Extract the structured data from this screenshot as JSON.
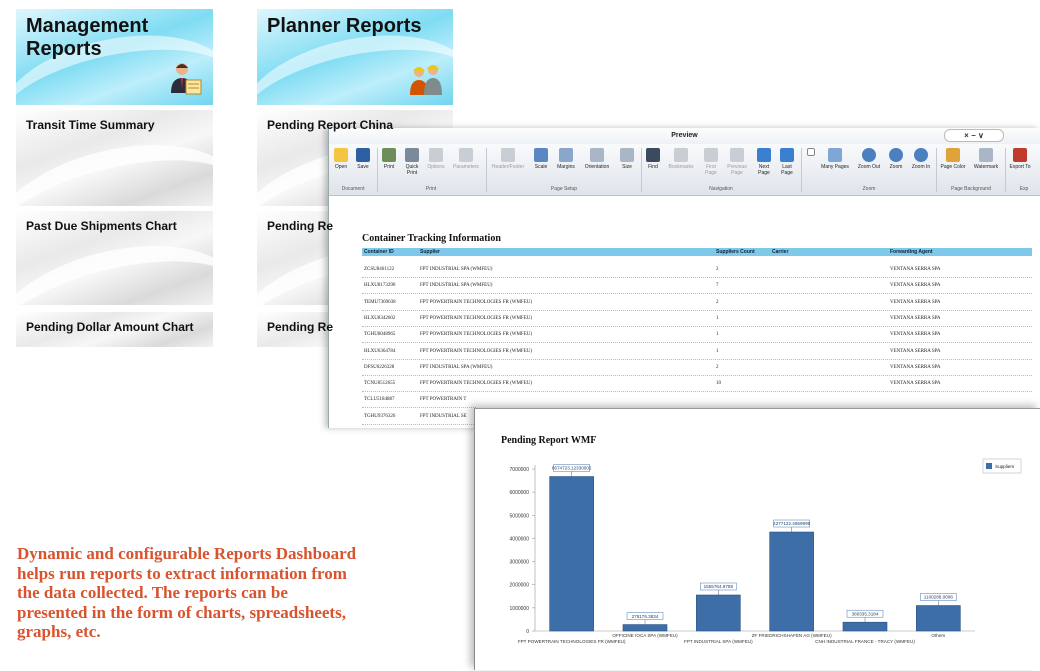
{
  "dashboard": {
    "management_title_line1": "Management",
    "management_title_line2": "Reports",
    "planner_title": "Planner Reports",
    "left_tiles": [
      "Transit Time Summary",
      "Past Due Shipments Chart",
      "Pending Dollar Amount Chart"
    ],
    "right_tiles": [
      "Pending Report China",
      "Pending Re",
      "Pending Re"
    ]
  },
  "preview": {
    "window_title": "Preview",
    "window_controls": "× − ∨",
    "ribbon": {
      "document": {
        "label": "Document",
        "buttons": [
          "Open",
          "Save"
        ]
      },
      "print": {
        "label": "Print",
        "buttons": [
          "Print",
          "Quick Print",
          "Options",
          "Parameters"
        ]
      },
      "page_setup": {
        "label": "Page Setup",
        "buttons": [
          "Header/Footer",
          "Scale",
          "Margins",
          "Orientation",
          "Size"
        ]
      },
      "navigation": {
        "label": "Navigation",
        "buttons": [
          "Find",
          "Bookmarks",
          "First Page",
          "Previous Page",
          "Next Page",
          "Last Page"
        ]
      },
      "zoom": {
        "label": "Zoom",
        "buttons": [
          "Many Pages",
          "Zoom Out",
          "Zoom",
          "Zoom In"
        ]
      },
      "page_background": {
        "label": "Page Background",
        "buttons": [
          "Page Color",
          "Watermark"
        ]
      },
      "export": {
        "label": "Exp",
        "buttons": [
          "Export To"
        ]
      }
    },
    "report_title": "Container Tracking Information",
    "columns": [
      "Container ID",
      "Supplier",
      "Suppliers Count",
      "Carrier",
      "Forwarding Agent"
    ],
    "rows": [
      [
        "ZCSU8461122",
        "FPT INDUSTRIAL SPA (WMFEU)",
        "2",
        "",
        "VENTANA SERRA SPA"
      ],
      [
        "HLXU8173290",
        "FPT INDUSTRIAL SPA (WMFEU)",
        "7",
        "",
        "VENTANA SERRA SPA"
      ],
      [
        "TEMU7369038",
        "FPT POWERTRAIN TECHNOLOGIES FR (WMFEU)",
        "2",
        "",
        "VENTANA SERRA SPA"
      ],
      [
        "HLXU8342602",
        "FPT POWERTRAIN TECHNOLOGIES FR (WMFEU)",
        "1",
        "",
        "VENTANA SERRA SPA"
      ],
      [
        "TGHU8048965",
        "FPT POWERTRAIN TECHNOLOGIES FR (WMFEU)",
        "1",
        "",
        "VENTANA SERRA SPA"
      ],
      [
        "HLXU6364784",
        "FPT POWERTRAIN TECHNOLOGIES FR (WMFEU)",
        "1",
        "",
        "VENTANA SERRA SPA"
      ],
      [
        "DFSU6226328",
        "FPT INDUSTRIAL SPA (WMFEU)",
        "2",
        "",
        "VENTANA SERRA SPA"
      ],
      [
        "TCNU8512655",
        "FPT POWERTRAIN TECHNOLOGIES FR (WMFEU)",
        "10",
        "",
        "VENTANA SERRA SPA"
      ],
      [
        "TCLU5184887",
        "FPT POWERTRAIN T",
        "",
        "",
        ""
      ],
      [
        "TGHU9376326",
        "FPT INDUSTRIAL SE",
        "",
        "",
        ""
      ]
    ]
  },
  "chart_data": {
    "type": "bar",
    "title": "Pending Report WMF",
    "categories": [
      "FPT POWERTRAIN TECHNOLOGIES FR (WMFEU)",
      "OFFICINE IOCA SPA (WMFEU)",
      "FPT INDUSTRIAL SPA (WMFEU)",
      "ZF FRIEDRICHSHAFEN AG (WMFEU)",
      "CNH INDUSTRIAL FRANCE - TRACY (WMFEU)",
      "Others"
    ],
    "series": [
      {
        "name": "Suppliers",
        "values": [
          6674723.12330002,
          278176.3834,
          1555764.9788,
          4277122.4959999,
          380335.3184,
          1100288.0008
        ]
      }
    ],
    "data_labels": [
      "6674723.12330002",
      "278176.3834",
      "1555764.9788",
      "4277122.4959999",
      "380335.3184",
      "1100288.0008"
    ],
    "yticks": [
      "0",
      "1000000",
      "2000000",
      "3000000",
      "4000000",
      "5000000",
      "6000000",
      "7000000"
    ],
    "ylim": [
      0,
      7000000
    ],
    "legend": "top-right",
    "colors": {
      "bar": "#3d6ea8",
      "bar_dark": "#2a5283"
    }
  },
  "description": [
    "Dynamic and configurable Reports Dashboard",
    "helps run reports to extract information from",
    "the data collected. The reports can be",
    "presented in the form of charts, spreadsheets,",
    "graphs, etc."
  ]
}
